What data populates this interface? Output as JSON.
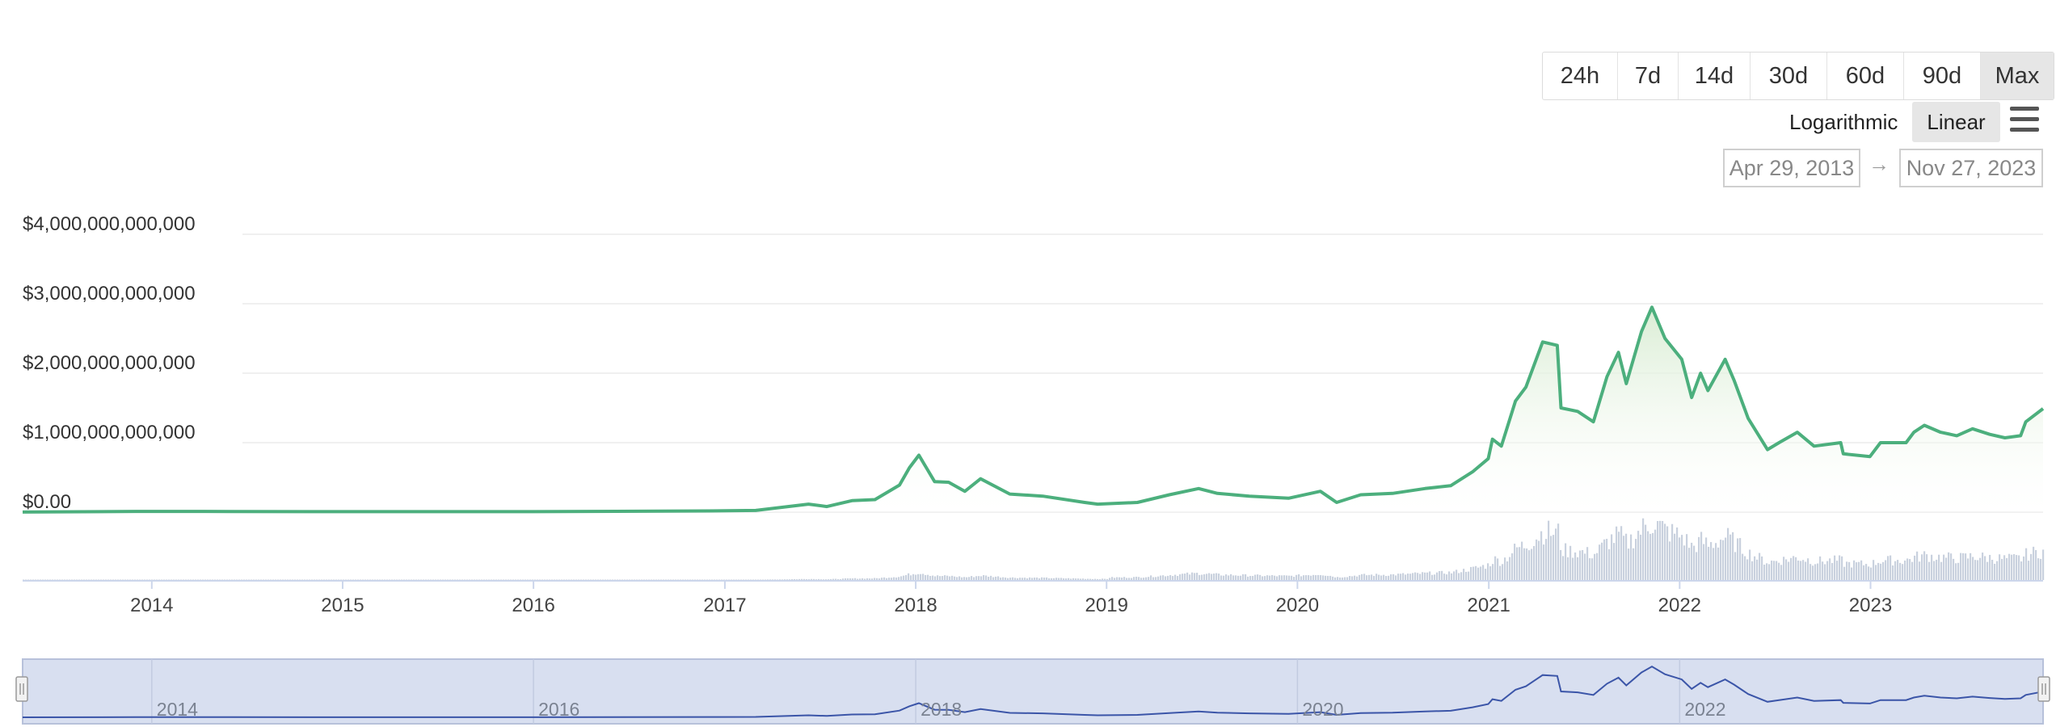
{
  "range_buttons": [
    "24h",
    "7d",
    "14d",
    "30d",
    "60d",
    "90d",
    "Max"
  ],
  "active_range": "Max",
  "scale": {
    "log_label": "Logarithmic",
    "linear_label": "Linear",
    "active": "Linear"
  },
  "date_range": {
    "from": "Apr 29, 2013",
    "to": "Nov 27, 2023"
  },
  "colors": {
    "line": "#4caf7d",
    "area_top": "#d8ecd2",
    "volume": "#c9d1de",
    "navigator_fill": "#d8dff0",
    "navigator_line": "#3b55a8"
  },
  "chart_data": {
    "type": "area",
    "title": "",
    "xlabel": "",
    "ylabel": "",
    "ylim": [
      0,
      4000000000000
    ],
    "xlim": [
      "2013-04-29",
      "2023-11-27"
    ],
    "y_ticks": [
      {
        "value": 0,
        "label": "$0.00"
      },
      {
        "value": 1000000000000,
        "label": "$1,000,000,000,000"
      },
      {
        "value": 2000000000000,
        "label": "$2,000,000,000,000"
      },
      {
        "value": 3000000000000,
        "label": "$3,000,000,000,000"
      },
      {
        "value": 4000000000000,
        "label": "$4,000,000,000,000"
      }
    ],
    "x_ticks": [
      "2014",
      "2015",
      "2016",
      "2017",
      "2018",
      "2019",
      "2020",
      "2021",
      "2022",
      "2023"
    ],
    "navigator_ticks": [
      "2014",
      "2016",
      "2018",
      "2020",
      "2022"
    ],
    "grid": true,
    "legend": "none",
    "series": [
      {
        "x": [
          "2013-04-29",
          "2013-12-01",
          "2014-06-01",
          "2015-01-01",
          "2016-01-01",
          "2016-12-01",
          "2017-03-01",
          "2017-06-10",
          "2017-07-15",
          "2017-09-01",
          "2017-10-15",
          "2017-12-01",
          "2017-12-20",
          "2018-01-07",
          "2018-02-06",
          "2018-03-05",
          "2018-04-05",
          "2018-05-05",
          "2018-06-30",
          "2018-09-01",
          "2018-11-20",
          "2018-12-15",
          "2019-03-01",
          "2019-05-01",
          "2019-06-26",
          "2019-08-01",
          "2019-10-01",
          "2019-12-15",
          "2020-02-14",
          "2020-03-16",
          "2020-05-01",
          "2020-07-01",
          "2020-09-01",
          "2020-10-20",
          "2020-12-01",
          "2020-12-31",
          "2021-01-08",
          "2021-01-25",
          "2021-02-21",
          "2021-03-13",
          "2021-04-14",
          "2021-05-12",
          "2021-05-19",
          "2021-06-20",
          "2021-07-20",
          "2021-08-15",
          "2021-09-06",
          "2021-09-21",
          "2021-10-20",
          "2021-11-09",
          "2021-12-04",
          "2022-01-05",
          "2022-01-24",
          "2022-02-10",
          "2022-02-24",
          "2022-03-29",
          "2022-04-15",
          "2022-05-12",
          "2022-06-18",
          "2022-07-10",
          "2022-08-14",
          "2022-09-15",
          "2022-11-05",
          "2022-11-10",
          "2022-12-31",
          "2023-01-20",
          "2023-03-10",
          "2023-03-25",
          "2023-04-14",
          "2023-05-15",
          "2023-06-15",
          "2023-07-15",
          "2023-08-17",
          "2023-09-15",
          "2023-10-15",
          "2023-10-25",
          "2023-11-27"
        ],
        "y": [
          1500000000,
          10000000000,
          9000000000,
          7000000000,
          7000000000,
          17000000000,
          25000000000,
          115000000000,
          80000000000,
          165000000000,
          180000000000,
          390000000000,
          640000000000,
          820000000000,
          440000000000,
          430000000000,
          300000000000,
          480000000000,
          260000000000,
          230000000000,
          140000000000,
          115000000000,
          140000000000,
          250000000000,
          340000000000,
          270000000000,
          230000000000,
          200000000000,
          300000000000,
          140000000000,
          250000000000,
          270000000000,
          340000000000,
          380000000000,
          580000000000,
          770000000000,
          1050000000000,
          950000000000,
          1600000000000,
          1800000000000,
          2450000000000,
          2400000000000,
          1500000000000,
          1450000000000,
          1300000000000,
          1950000000000,
          2300000000000,
          1850000000000,
          2600000000000,
          2950000000000,
          2500000000000,
          2200000000000,
          1650000000000,
          2000000000000,
          1750000000000,
          2200000000000,
          1900000000000,
          1350000000000,
          900000000000,
          1000000000000,
          1150000000000,
          950000000000,
          1000000000000,
          840000000000,
          800000000000,
          1000000000000,
          1000000000000,
          1150000000000,
          1250000000000,
          1150000000000,
          1100000000000,
          1200000000000,
          1120000000000,
          1070000000000,
          1100000000000,
          1300000000000,
          1490000000000
        ]
      }
    ]
  }
}
